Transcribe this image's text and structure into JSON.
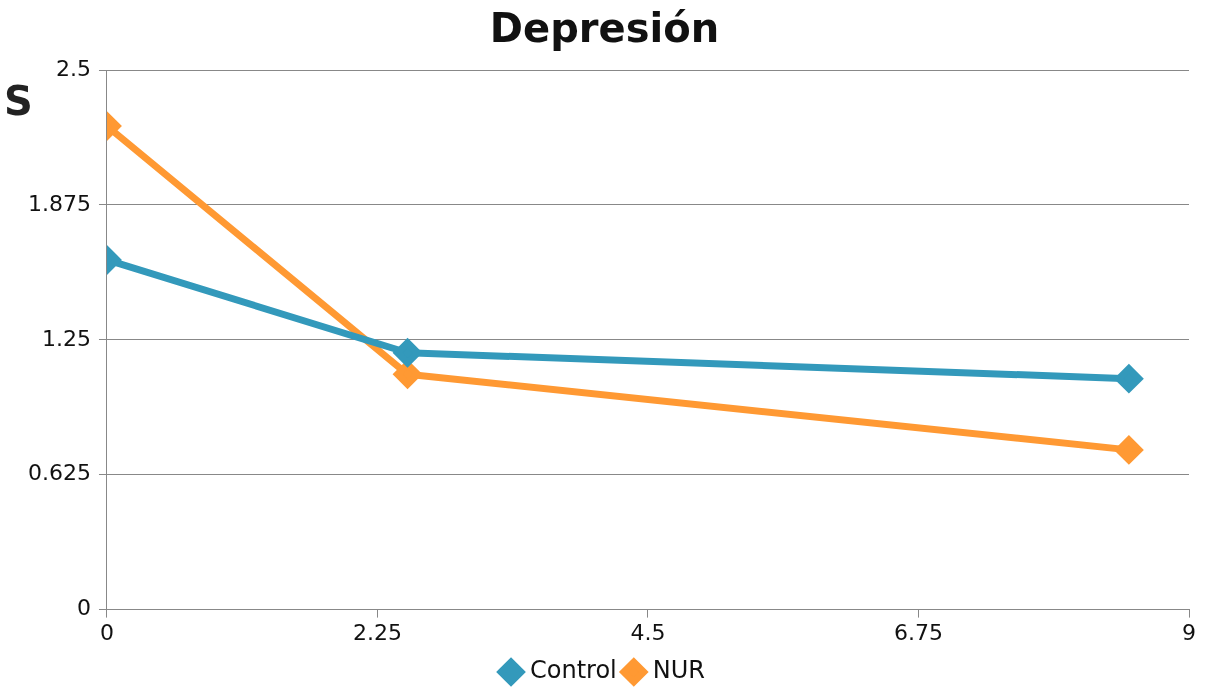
{
  "chart_data": {
    "type": "line",
    "title": "Depresión",
    "ylabel": "S",
    "x": [
      0,
      2.5,
      8.5
    ],
    "series": [
      {
        "name": "Control",
        "color": "#3399bb",
        "values": [
          1.62,
          1.19,
          1.07
        ]
      },
      {
        "name": "NUR",
        "color": "#ff9933",
        "values": [
          2.24,
          1.09,
          0.74
        ]
      }
    ],
    "xlim": [
      0,
      9
    ],
    "xticks": [
      0,
      2.25,
      4.5,
      6.75,
      9
    ],
    "ylim": [
      0,
      2.5
    ],
    "yticks": [
      0,
      0.625,
      1.25,
      1.875,
      2.5
    ],
    "grid": "y",
    "legend": "bottom",
    "marker": "diamond",
    "line_style": "solid"
  }
}
